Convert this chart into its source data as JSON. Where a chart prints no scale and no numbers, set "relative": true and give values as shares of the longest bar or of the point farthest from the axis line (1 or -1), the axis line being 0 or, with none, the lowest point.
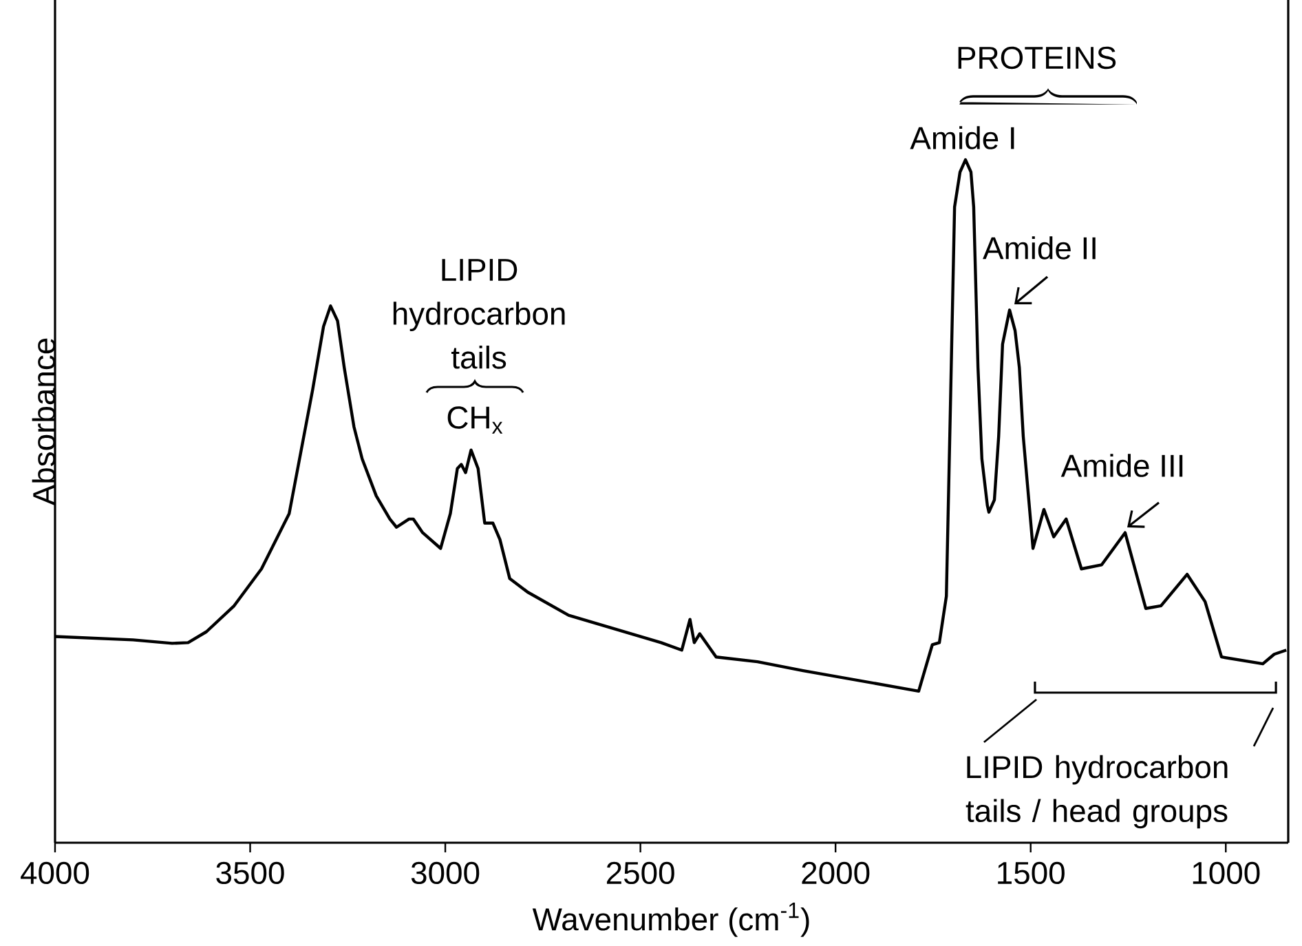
{
  "chart_data": {
    "type": "line",
    "relative": true,
    "xlabel": "Wavenumber (cm$^{-1}$)",
    "ylabel": "Absorbance",
    "tick_labels": "x",
    "color": "#000000",
    "xlim": [
      4000,
      840
    ],
    "xticks": [
      4000,
      3500,
      3000,
      2500,
      2000,
      1500,
      1000
    ],
    "x": [
      4000,
      3800,
      3700,
      3659,
      3612,
      3541,
      3471,
      3400,
      3340,
      3312,
      3294,
      3276,
      3259,
      3234,
      3213,
      3177,
      3142,
      3125,
      3093,
      3082,
      3058,
      3012,
      2987,
      2969,
      2959,
      2948,
      2934,
      2916,
      2899,
      2878,
      2860,
      2835,
      2789,
      2684,
      2447,
      2394,
      2373,
      2362,
      2348,
      2306,
      2200,
      2083,
      1787,
      1752,
      1734,
      1716,
      1706,
      1695,
      1681,
      1667,
      1653,
      1646,
      1635,
      1625,
      1611,
      1607,
      1593,
      1582,
      1572,
      1554,
      1540,
      1529,
      1519,
      1494,
      1466,
      1441,
      1409,
      1370,
      1318,
      1258,
      1205,
      1166,
      1099,
      1053,
      1011,
      905,
      876,
      845
    ],
    "values": [
      0.302,
      0.297,
      0.292,
      0.293,
      0.309,
      0.347,
      0.401,
      0.482,
      0.663,
      0.756,
      0.786,
      0.764,
      0.696,
      0.609,
      0.562,
      0.508,
      0.474,
      0.462,
      0.474,
      0.474,
      0.454,
      0.431,
      0.482,
      0.548,
      0.554,
      0.542,
      0.575,
      0.548,
      0.468,
      0.468,
      0.444,
      0.387,
      0.367,
      0.333,
      0.293,
      0.282,
      0.327,
      0.293,
      0.306,
      0.272,
      0.265,
      0.252,
      0.222,
      0.29,
      0.293,
      0.361,
      0.629,
      0.931,
      0.982,
      1.0,
      0.982,
      0.931,
      0.696,
      0.562,
      0.494,
      0.484,
      0.502,
      0.595,
      0.73,
      0.78,
      0.75,
      0.696,
      0.595,
      0.431,
      0.488,
      0.448,
      0.474,
      0.401,
      0.407,
      0.454,
      0.343,
      0.347,
      0.393,
      0.353,
      0.272,
      0.262,
      0.276,
      0.282
    ],
    "annotations": [
      "PROTEINS",
      "Amide I",
      "Amide II",
      "Amide III",
      "LIPID hydrocarbon tails",
      "CH$_{x}$",
      "LIPID hydrocarbon tails / head groups"
    ]
  }
}
